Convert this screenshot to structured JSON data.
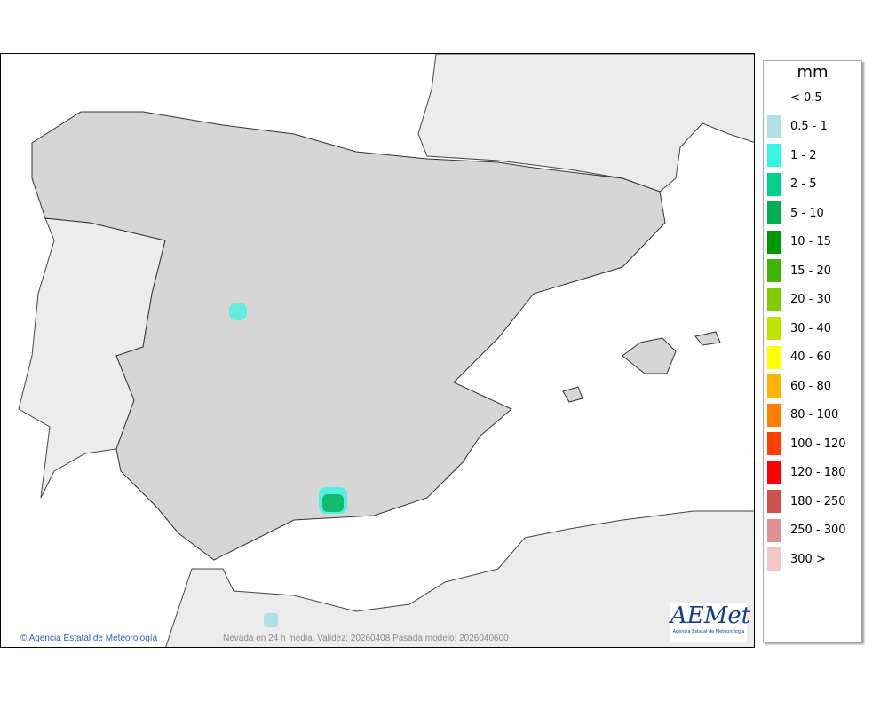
{
  "map": {
    "caption": "Nevada en 24 h media. Validez: 20260408 Pasada modelo: 2026040600",
    "credit": "Agencia Estatal de Meteorología",
    "logo": {
      "word": "AEMet",
      "sub": "Agencia Estatal de Meteorología"
    }
  },
  "legend": {
    "unit": "mm",
    "items": [
      {
        "label": "< 0.5",
        "color": ""
      },
      {
        "label": "0.5 - 1",
        "color": "#b0dfe4"
      },
      {
        "label": "1 - 2",
        "color": "#33f5e0"
      },
      {
        "label": "2 - 5",
        "color": "#00d08a"
      },
      {
        "label": "5 - 10",
        "color": "#00b050"
      },
      {
        "label": "10 - 15",
        "color": "#009a00"
      },
      {
        "label": "15 - 20",
        "color": "#40b400"
      },
      {
        "label": "20 - 30",
        "color": "#80cc00"
      },
      {
        "label": "30 - 40",
        "color": "#c0e400"
      },
      {
        "label": "40 - 60",
        "color": "#ffff00"
      },
      {
        "label": "60 - 80",
        "color": "#ffb400"
      },
      {
        "label": "80 - 100",
        "color": "#ff8000"
      },
      {
        "label": "100 - 120",
        "color": "#ff4000"
      },
      {
        "label": "120 - 180",
        "color": "#ff0000"
      },
      {
        "label": "180 - 250",
        "color": "#d05050"
      },
      {
        "label": "250 - 300",
        "color": "#e09090"
      },
      {
        "label": "300 >",
        "color": "#f0c8c8"
      }
    ]
  }
}
